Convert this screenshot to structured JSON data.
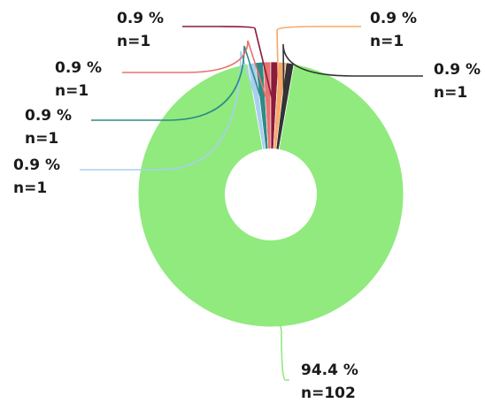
{
  "chart_data": {
    "type": "pie",
    "donut": true,
    "title": "",
    "slices": [
      {
        "percent_label": "94.4 %",
        "count_label": "n=102",
        "value": 102,
        "color": "#90ea7e"
      },
      {
        "percent_label": "0.9 %",
        "count_label": "n=1",
        "value": 1,
        "color": "#a8cff0"
      },
      {
        "percent_label": "0.9 %",
        "count_label": "n=1",
        "value": 1,
        "color": "#2e8b86"
      },
      {
        "percent_label": "0.9 %",
        "count_label": "n=1",
        "value": 1,
        "color": "#e8736f"
      },
      {
        "percent_label": "0.9 %",
        "count_label": "n=1",
        "value": 1,
        "color": "#8b1a3d"
      },
      {
        "percent_label": "0.9 %",
        "count_label": "n=1",
        "value": 1,
        "color": "#f6a86a"
      },
      {
        "percent_label": "0.9 %",
        "count_label": "n=1",
        "value": 1,
        "color": "#333333"
      }
    ]
  }
}
